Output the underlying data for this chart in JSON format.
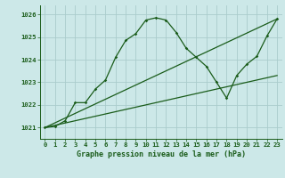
{
  "title": "Graphe pression niveau de la mer (hPa)",
  "bg_color": "#cce8e8",
  "grid_color": "#aacccc",
  "line_color": "#1a5c1a",
  "xlim": [
    -0.5,
    23.5
  ],
  "ylim": [
    1020.5,
    1026.4
  ],
  "yticks": [
    1021,
    1022,
    1023,
    1024,
    1025,
    1026
  ],
  "xticks": [
    0,
    1,
    2,
    3,
    4,
    5,
    6,
    7,
    8,
    9,
    10,
    11,
    12,
    13,
    14,
    15,
    16,
    17,
    18,
    19,
    20,
    21,
    22,
    23
  ],
  "main_x": [
    0,
    1,
    2,
    3,
    4,
    5,
    6,
    7,
    8,
    9,
    10,
    11,
    12,
    13,
    14,
    15,
    16,
    17,
    18,
    19,
    20,
    21,
    22,
    23
  ],
  "main_y": [
    1021.0,
    1021.05,
    1021.3,
    1022.1,
    1022.1,
    1022.7,
    1023.1,
    1024.1,
    1024.85,
    1025.15,
    1025.75,
    1025.85,
    1025.75,
    1025.2,
    1024.5,
    1024.1,
    1023.7,
    1023.0,
    1022.3,
    1023.3,
    1023.8,
    1024.15,
    1025.05,
    1025.8
  ],
  "trend1_x": [
    0,
    23
  ],
  "trend1_y": [
    1021.0,
    1025.8
  ],
  "trend2_x": [
    0,
    23
  ],
  "trend2_y": [
    1021.0,
    1023.3
  ],
  "title_fontsize": 6.0,
  "tick_fontsize": 5.2
}
